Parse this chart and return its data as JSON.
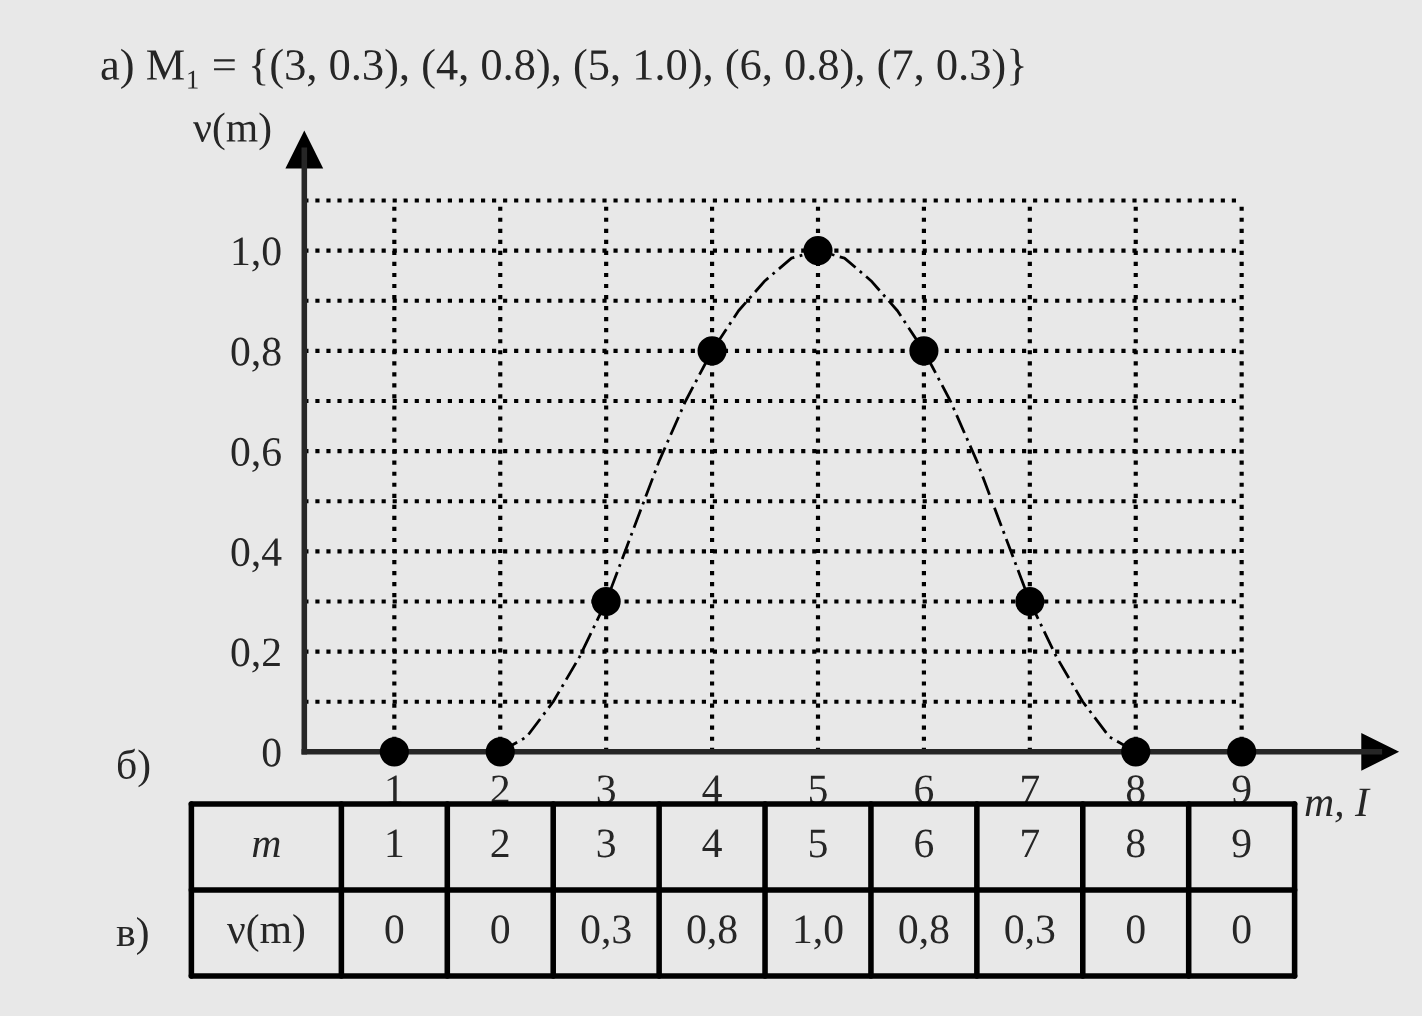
{
  "chart_data": [
    {
      "type": "scatter",
      "title": "а) M₁ = {(3, 0.3), (4, 0.8), (5, 1.0), (6, 0.8), (7, 0.3)}",
      "xlabel": "m, I",
      "ylabel": "ν(m)",
      "x": [
        1,
        2,
        3,
        4,
        5,
        6,
        7,
        8,
        9
      ],
      "series": [
        {
          "type": "scatter",
          "color": "#000000",
          "marker": "circle",
          "values": [
            0,
            0,
            0.3,
            0.8,
            1.0,
            0.8,
            0.3,
            0,
            0
          ]
        },
        {
          "type": "line",
          "color": "#000000",
          "line_style": "dashed",
          "x": [
            2,
            2.25,
            2.5,
            2.75,
            3,
            3.25,
            3.5,
            3.75,
            4,
            4.25,
            4.5,
            4.75,
            5,
            5.25,
            5.5,
            5.75,
            6,
            6.25,
            6.5,
            6.75,
            7,
            7.25,
            7.5,
            7.75,
            8
          ],
          "values": [
            0,
            0.03,
            0.1,
            0.19,
            0.3,
            0.44,
            0.58,
            0.7,
            0.8,
            0.88,
            0.94,
            0.985,
            1.0,
            0.985,
            0.94,
            0.88,
            0.8,
            0.7,
            0.58,
            0.44,
            0.3,
            0.19,
            0.1,
            0.03,
            0
          ]
        }
      ],
      "xlim": [
        0.15,
        10.3
      ],
      "ylim": [
        0,
        1.2
      ],
      "xticks": [
        1,
        2,
        3,
        4,
        5,
        6,
        7,
        8,
        9
      ],
      "yticks": [
        {
          "value": 0,
          "label": "0"
        },
        {
          "value": 0.1,
          "label": null
        },
        {
          "value": 0.2,
          "label": "0,2"
        },
        {
          "value": 0.3,
          "label": null
        },
        {
          "value": 0.4,
          "label": "0,4"
        },
        {
          "value": 0.5,
          "label": null
        },
        {
          "value": 0.6,
          "label": "0,6"
        },
        {
          "value": 0.7,
          "label": null
        },
        {
          "value": 0.8,
          "label": "0,8"
        },
        {
          "value": 0.9,
          "label": null
        },
        {
          "value": 1.0,
          "label": "1,0"
        },
        {
          "value": 1.1,
          "label": null
        }
      ],
      "grid": true,
      "annotations": [
        "б)"
      ]
    },
    {
      "type": "heatmap",
      "annotations": [
        "в)"
      ],
      "categories": [
        null,
        null,
        null,
        null,
        null,
        null,
        null,
        null,
        null
      ],
      "y_categories": [
        "m",
        "ν(m)"
      ],
      "cells": [
        [
          null,
          null,
          null,
          null,
          null,
          null,
          null,
          null,
          null
        ],
        [
          null,
          null,
          null,
          null,
          null,
          null,
          null,
          null,
          null
        ]
      ],
      "cell_labels": [
        [
          "1",
          "2",
          "3",
          "4",
          "5",
          "6",
          "7",
          "8",
          "9"
        ],
        [
          "0",
          "0",
          "0,3",
          "0,8",
          "1,0",
          "0,8",
          "0,3",
          "0",
          "0"
        ]
      ]
    }
  ]
}
